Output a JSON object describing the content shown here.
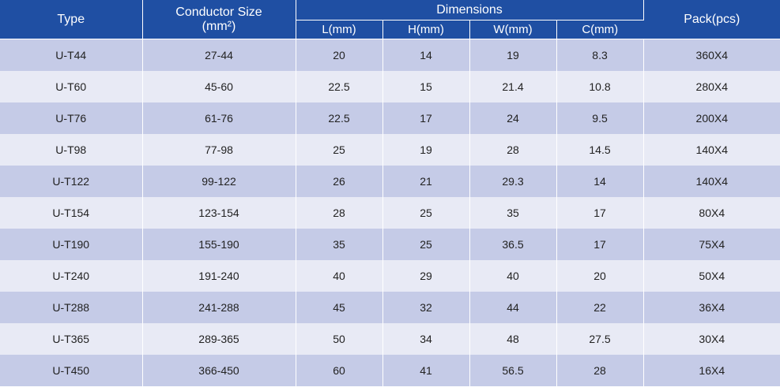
{
  "headers": {
    "type": "Type",
    "conductor_size": "Conductor Size",
    "conductor_unit": "(mm²)",
    "dimensions": "Dimensions",
    "l": "L(mm)",
    "h": "H(mm)",
    "w": "W(mm)",
    "c": "C(mm)",
    "pack": "Pack(pcs)"
  },
  "rows": [
    {
      "type": "U-T44",
      "size": "27-44",
      "l": "20",
      "h": "14",
      "w": "19",
      "c": "8.3",
      "pack": "360X4"
    },
    {
      "type": "U-T60",
      "size": "45-60",
      "l": "22.5",
      "h": "15",
      "w": "21.4",
      "c": "10.8",
      "pack": "280X4"
    },
    {
      "type": "U-T76",
      "size": "61-76",
      "l": "22.5",
      "h": "17",
      "w": "24",
      "c": "9.5",
      "pack": "200X4"
    },
    {
      "type": "U-T98",
      "size": "77-98",
      "l": "25",
      "h": "19",
      "w": "28",
      "c": "14.5",
      "pack": "140X4"
    },
    {
      "type": "U-T122",
      "size": "99-122",
      "l": "26",
      "h": "21",
      "w": "29.3",
      "c": "14",
      "pack": "140X4"
    },
    {
      "type": "U-T154",
      "size": "123-154",
      "l": "28",
      "h": "25",
      "w": "35",
      "c": "17",
      "pack": "80X4"
    },
    {
      "type": "U-T190",
      "size": "155-190",
      "l": "35",
      "h": "25",
      "w": "36.5",
      "c": "17",
      "pack": "75X4"
    },
    {
      "type": "U-T240",
      "size": "191-240",
      "l": "40",
      "h": "29",
      "w": "40",
      "c": "20",
      "pack": "50X4"
    },
    {
      "type": "U-T288",
      "size": "241-288",
      "l": "45",
      "h": "32",
      "w": "44",
      "c": "22",
      "pack": "36X4"
    },
    {
      "type": "U-T365",
      "size": "289-365",
      "l": "50",
      "h": "34",
      "w": "48",
      "c": "27.5",
      "pack": "30X4"
    },
    {
      "type": "U-T450",
      "size": "366-450",
      "l": "60",
      "h": "41",
      "w": "56.5",
      "c": "28",
      "pack": "16X4"
    }
  ]
}
